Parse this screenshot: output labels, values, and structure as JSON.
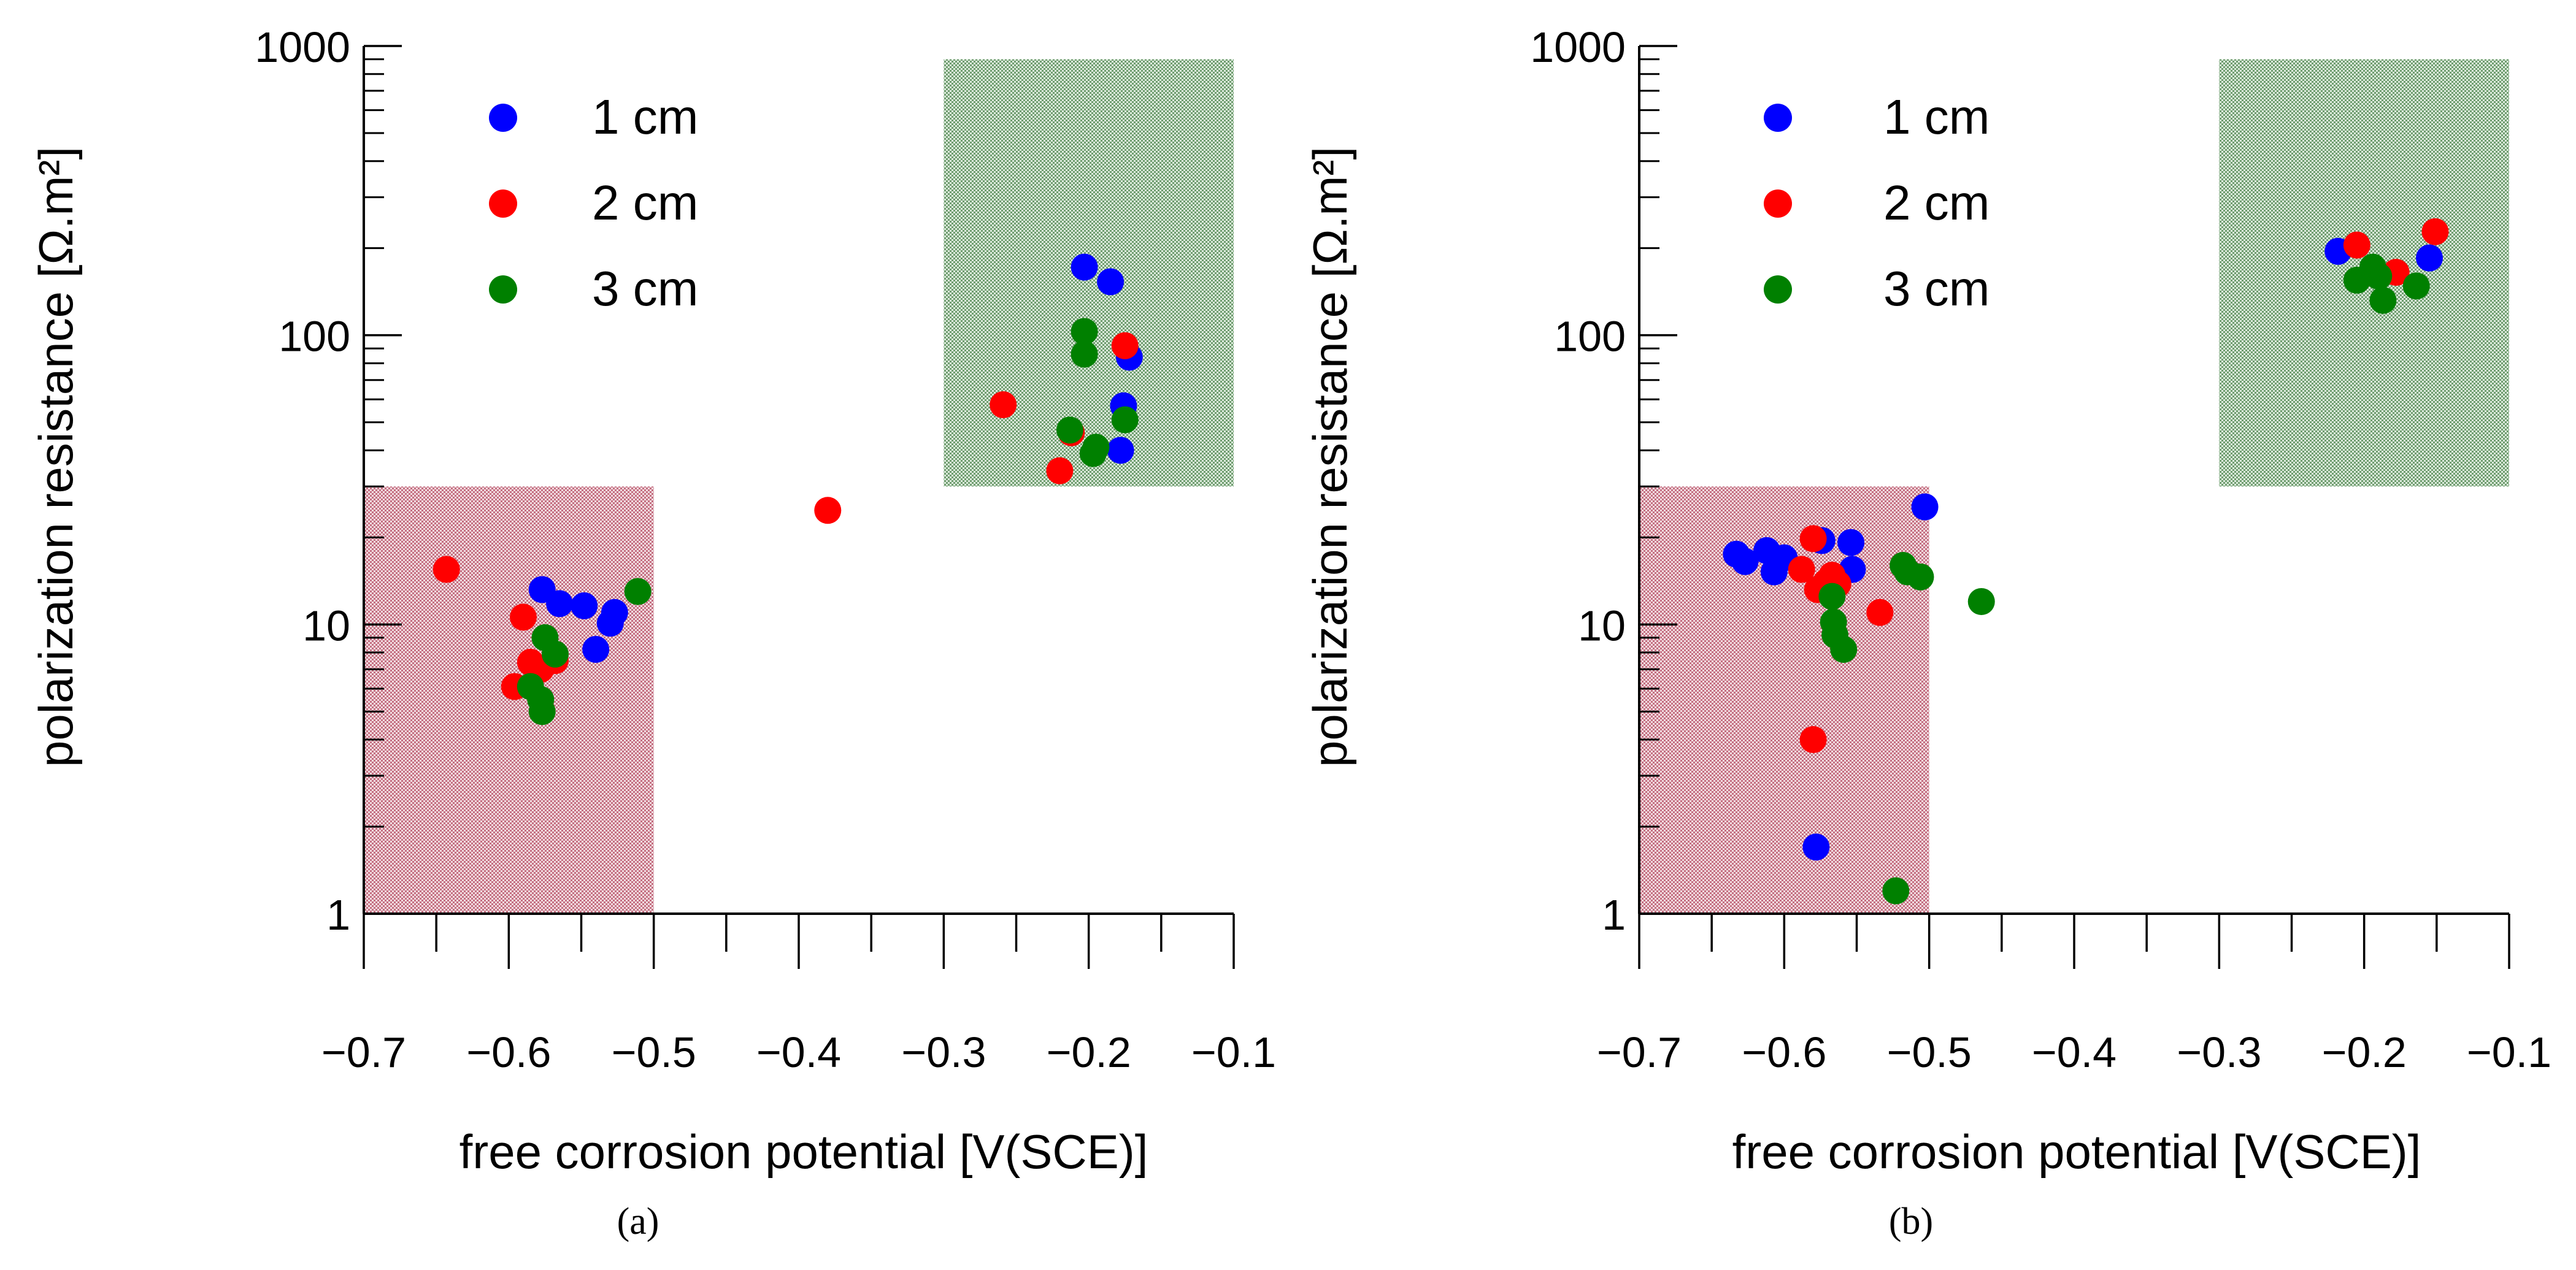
{
  "chart_data": [
    {
      "type": "scatter",
      "panel_label": "(a)",
      "xlabel": "free corrosion potential [V(SCE)]",
      "ylabel": "polarization resistance [Ω.m²]",
      "x_scale": "linear",
      "y_scale": "log",
      "xlim": [
        -0.7,
        -0.1
      ],
      "ylim": [
        1,
        1000
      ],
      "x_ticks": [
        -0.7,
        -0.6,
        -0.5,
        -0.4,
        -0.3,
        -0.2,
        -0.1
      ],
      "x_tick_labels": [
        "−0.7",
        "−0.6",
        "−0.5",
        "−0.4",
        "−0.3",
        "−0.2",
        "−0.1"
      ],
      "y_ticks": [
        1,
        10,
        100,
        1000
      ],
      "y_tick_labels": [
        "1",
        "10",
        "100",
        "1000"
      ],
      "regions": [
        {
          "name": "low-resistance-zone",
          "color": "#c97a8a",
          "x": [
            -0.7,
            -0.5
          ],
          "y": [
            1,
            30
          ]
        },
        {
          "name": "high-resistance-zone",
          "color": "#7fa87f",
          "x": [
            -0.3,
            -0.1
          ],
          "y": [
            30,
            900
          ]
        }
      ],
      "legend_position": "top-left",
      "series": [
        {
          "name": "1 cm",
          "color": "#0000ff",
          "points": [
            [
              -0.577,
              13.2
            ],
            [
              -0.565,
              11.8
            ],
            [
              -0.548,
              11.6
            ],
            [
              -0.54,
              8.2
            ],
            [
              -0.53,
              10.1
            ],
            [
              -0.527,
              11.0
            ],
            [
              -0.203,
              172
            ],
            [
              -0.185,
              153
            ],
            [
              -0.172,
              84
            ],
            [
              -0.176,
              57
            ],
            [
              -0.178,
              40
            ]
          ]
        },
        {
          "name": "2 cm",
          "color": "#ff0000",
          "points": [
            [
              -0.643,
              15.5
            ],
            [
              -0.59,
              10.6
            ],
            [
              -0.585,
              7.4
            ],
            [
              -0.578,
              7.0
            ],
            [
              -0.568,
              7.5
            ],
            [
              -0.596,
              6.1
            ],
            [
              -0.38,
              24.8
            ],
            [
              -0.259,
              57.5
            ],
            [
              -0.22,
              34
            ],
            [
              -0.212,
              46
            ],
            [
              -0.175,
              92
            ]
          ]
        },
        {
          "name": "3 cm",
          "color": "#008000",
          "points": [
            [
              -0.575,
              9.0
            ],
            [
              -0.568,
              7.9
            ],
            [
              -0.585,
              6.1
            ],
            [
              -0.578,
              5.5
            ],
            [
              -0.577,
              5.0
            ],
            [
              -0.511,
              13.0
            ],
            [
              -0.203,
              103
            ],
            [
              -0.203,
              86
            ],
            [
              -0.213,
              47
            ],
            [
              -0.197,
              39
            ],
            [
              -0.195,
              41
            ],
            [
              -0.175,
              51
            ]
          ]
        }
      ]
    },
    {
      "type": "scatter",
      "panel_label": "(b)",
      "xlabel": "free corrosion potential [V(SCE)]",
      "ylabel": "polarization resistance [Ω.m²]",
      "x_scale": "linear",
      "y_scale": "log",
      "xlim": [
        -0.7,
        -0.1
      ],
      "ylim": [
        1,
        1000
      ],
      "x_ticks": [
        -0.7,
        -0.6,
        -0.5,
        -0.4,
        -0.3,
        -0.2,
        -0.1
      ],
      "x_tick_labels": [
        "−0.7",
        "−0.6",
        "−0.5",
        "−0.4",
        "−0.3",
        "−0.2",
        "−0.1"
      ],
      "y_ticks": [
        1,
        10,
        100,
        1000
      ],
      "y_tick_labels": [
        "1",
        "10",
        "100",
        "1000"
      ],
      "regions": [
        {
          "name": "low-resistance-zone",
          "color": "#c97a8a",
          "x": [
            -0.7,
            -0.5
          ],
          "y": [
            1,
            30
          ]
        },
        {
          "name": "high-resistance-zone",
          "color": "#7fa87f",
          "x": [
            -0.3,
            -0.1
          ],
          "y": [
            30,
            900
          ]
        }
      ],
      "legend_position": "top-left",
      "series": [
        {
          "name": "1 cm",
          "color": "#0000ff",
          "points": [
            [
              -0.633,
              17.5
            ],
            [
              -0.627,
              16.5
            ],
            [
              -0.612,
              18.0
            ],
            [
              -0.607,
              15.2
            ],
            [
              -0.6,
              17.0
            ],
            [
              -0.574,
              19.5
            ],
            [
              -0.554,
              19.2
            ],
            [
              -0.553,
              15.5
            ],
            [
              -0.503,
              25.5
            ],
            [
              -0.578,
              1.7
            ],
            [
              -0.218,
              195
            ],
            [
              -0.155,
              185
            ]
          ]
        },
        {
          "name": "2 cm",
          "color": "#ff0000",
          "points": [
            [
              -0.588,
              15.5
            ],
            [
              -0.58,
              19.8
            ],
            [
              -0.577,
              13.2
            ],
            [
              -0.571,
              14.0
            ],
            [
              -0.567,
              14.8
            ],
            [
              -0.563,
              13.8
            ],
            [
              -0.534,
              11.0
            ],
            [
              -0.58,
              4.0
            ],
            [
              -0.205,
              205
            ],
            [
              -0.178,
              165
            ],
            [
              -0.151,
              228
            ]
          ]
        },
        {
          "name": "3 cm",
          "color": "#008000",
          "points": [
            [
              -0.567,
              12.5
            ],
            [
              -0.566,
              10.2
            ],
            [
              -0.565,
              9.2
            ],
            [
              -0.559,
              8.2
            ],
            [
              -0.518,
              16.0
            ],
            [
              -0.515,
              15.2
            ],
            [
              -0.506,
              14.6
            ],
            [
              -0.464,
              12.0
            ],
            [
              -0.523,
              1.2
            ],
            [
              -0.205,
              155
            ],
            [
              -0.194,
              172
            ],
            [
              -0.19,
              160
            ],
            [
              -0.187,
              132
            ],
            [
              -0.164,
              148
            ]
          ]
        }
      ]
    }
  ]
}
